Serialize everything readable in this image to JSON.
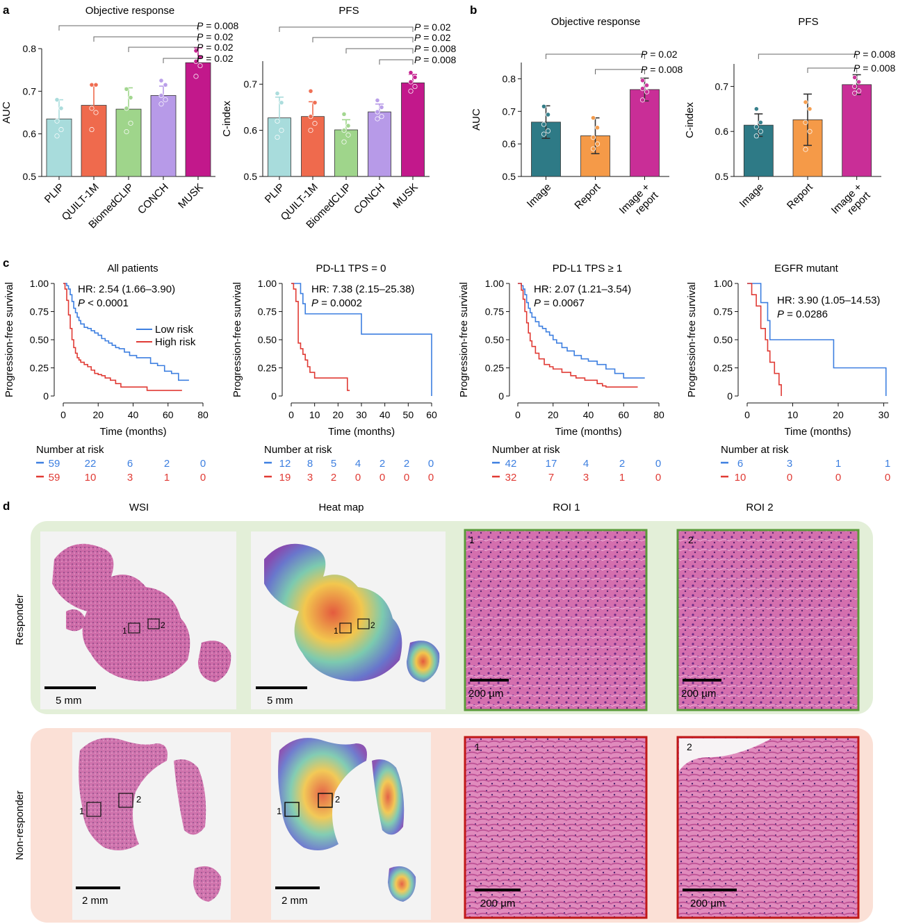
{
  "panels": {
    "a": "a",
    "b": "b",
    "c": "c",
    "d": "d"
  },
  "colors": {
    "PLIP": "#a8dcdc",
    "QUILT-1M": "#ef6a4d",
    "BiomedCLIP": "#9fd58b",
    "CONCH": "#b79ae8",
    "MUSK": "#c2188b",
    "Image": "#2e7a86",
    "Report": "#f59a48",
    "Image + report": "#c92e97",
    "low_risk": "#3d7fe0",
    "high_risk": "#e03a34",
    "responder_bg": "#e3efd8",
    "nonresponder_bg": "#fbe0d6",
    "responder_border": "#5a9a3a",
    "nonresponder_border": "#c01818"
  },
  "chart_data": [
    {
      "id": "a1",
      "type": "bar",
      "title": "Objective response",
      "xlabel": "",
      "ylabel": "AUC",
      "ylim": [
        0.5,
        0.8
      ],
      "yticks": [
        "0.5",
        "0.6",
        "0.7",
        "0.8"
      ],
      "categories": [
        "PLIP",
        "QUILT-1M",
        "BiomedCLIP",
        "CONCH",
        "MUSK"
      ],
      "values": [
        0.635,
        0.667,
        0.658,
        0.69,
        0.767
      ],
      "err": [
        0.045,
        0.048,
        0.05,
        0.022,
        0.035
      ],
      "points": [
        [
          0.68,
          0.66,
          0.63,
          0.61,
          0.595
        ],
        [
          0.715,
          0.715,
          0.66,
          0.65,
          0.61
        ],
        [
          0.705,
          0.685,
          0.66,
          0.625,
          0.605
        ],
        [
          0.725,
          0.715,
          0.69,
          0.68,
          0.67
        ],
        [
          0.795,
          0.78,
          0.77,
          0.76,
          0.735
        ]
      ],
      "comparisons": [
        "P = 0.008",
        "P = 0.02",
        "P = 0.02",
        "P = 0.02"
      ]
    },
    {
      "id": "a2",
      "type": "bar",
      "title": "PFS",
      "xlabel": "",
      "ylabel": "C-index",
      "ylim": [
        0.5,
        0.75
      ],
      "yticks": [
        "0.5",
        "0.6",
        "0.7"
      ],
      "categories": [
        "PLIP",
        "QUILT-1M",
        "BiomedCLIP",
        "CONCH",
        "MUSK"
      ],
      "values": [
        0.627,
        0.63,
        0.601,
        0.64,
        0.703
      ],
      "err": [
        0.045,
        0.032,
        0.022,
        0.017,
        0.018
      ],
      "points": [
        [
          0.68,
          0.66,
          0.62,
          0.6,
          0.585
        ],
        [
          0.685,
          0.66,
          0.63,
          0.615,
          0.6
        ],
        [
          0.635,
          0.61,
          0.6,
          0.59,
          0.575
        ],
        [
          0.665,
          0.65,
          0.64,
          0.63,
          0.625
        ],
        [
          0.725,
          0.715,
          0.705,
          0.695,
          0.685
        ]
      ],
      "comparisons": [
        "P = 0.02",
        "P = 0.02",
        "P = 0.008",
        "P = 0.008"
      ]
    },
    {
      "id": "b1",
      "type": "bar",
      "title": "Objective response",
      "xlabel": "",
      "ylabel": "AUC",
      "ylim": [
        0.5,
        0.85
      ],
      "yticks": [
        "0.5",
        "0.6",
        "0.7",
        "0.8"
      ],
      "categories": [
        "Image",
        "Report",
        "Image + report"
      ],
      "tick_lines": [
        [
          "Image"
        ],
        [
          "Report"
        ],
        [
          "Image +",
          "report"
        ]
      ],
      "values": [
        0.667,
        0.625,
        0.767
      ],
      "err": [
        0.05,
        0.055,
        0.035
      ],
      "points": [
        [
          0.715,
          0.69,
          0.66,
          0.64,
          0.63
        ],
        [
          0.68,
          0.65,
          0.62,
          0.6,
          0.585
        ],
        [
          0.795,
          0.78,
          0.77,
          0.76,
          0.735
        ]
      ],
      "comparisons": [
        "P = 0.02",
        "P = 0.008"
      ]
    },
    {
      "id": "b2",
      "type": "bar",
      "title": "PFS",
      "xlabel": "",
      "ylabel": "C-index",
      "ylim": [
        0.5,
        0.75
      ],
      "yticks": [
        "0.5",
        "0.6",
        "0.7"
      ],
      "categories": [
        "Image",
        "Report",
        "Image + report"
      ],
      "tick_lines": [
        [
          "Image"
        ],
        [
          "Report"
        ],
        [
          "Image +",
          "report"
        ]
      ],
      "values": [
        0.614,
        0.626,
        0.704
      ],
      "err": [
        0.025,
        0.057,
        0.022
      ],
      "points": [
        [
          0.65,
          0.62,
          0.61,
          0.6,
          0.59
        ],
        [
          0.665,
          0.65,
          0.62,
          0.6,
          0.56
        ],
        [
          0.72,
          0.71,
          0.7,
          0.69,
          0.685
        ]
      ],
      "comparisons": [
        "P = 0.008",
        "P = 0.008"
      ]
    },
    {
      "id": "c1",
      "type": "line",
      "title": "All patients",
      "xlabel": "Time (months)",
      "ylabel": "Progression-free survival",
      "xlim": [
        0,
        80
      ],
      "xticks": [
        "0",
        "20",
        "40",
        "60",
        "80"
      ],
      "ylim": [
        0,
        1
      ],
      "yticks": [
        "0",
        "0.25",
        "0.50",
        "0.75",
        "1.00"
      ],
      "hr": "HR: 2.54 (1.66–3.90)",
      "p_prefix": "P",
      "p_text": " < 0.0001",
      "legend": {
        "low": "Low risk",
        "high": "High risk"
      },
      "series": [
        {
          "name": "Low risk",
          "x": [
            0,
            2,
            3,
            4,
            5,
            6,
            7,
            8,
            9,
            10,
            12,
            14,
            16,
            18,
            20,
            22,
            24,
            26,
            28,
            30,
            32,
            35,
            38,
            42,
            46,
            50,
            54,
            58,
            62,
            66,
            72
          ],
          "y": [
            1.0,
            0.98,
            0.95,
            0.9,
            0.84,
            0.78,
            0.74,
            0.7,
            0.67,
            0.64,
            0.61,
            0.6,
            0.58,
            0.56,
            0.54,
            0.51,
            0.49,
            0.47,
            0.45,
            0.43,
            0.42,
            0.39,
            0.36,
            0.34,
            0.34,
            0.29,
            0.27,
            0.22,
            0.2,
            0.14,
            0.14
          ]
        },
        {
          "name": "High risk",
          "x": [
            0,
            1,
            2,
            3,
            4,
            5,
            6,
            7,
            8,
            9,
            10,
            12,
            14,
            16,
            18,
            20,
            22,
            24,
            27,
            30,
            33,
            40,
            48,
            55,
            60,
            68
          ],
          "y": [
            1.0,
            0.95,
            0.85,
            0.72,
            0.6,
            0.5,
            0.43,
            0.38,
            0.34,
            0.32,
            0.3,
            0.28,
            0.26,
            0.23,
            0.2,
            0.19,
            0.18,
            0.16,
            0.14,
            0.11,
            0.08,
            0.08,
            0.05,
            0.05,
            0.05,
            0.05
          ]
        }
      ],
      "risk_table": {
        "label": "Number at risk",
        "low": [
          "59",
          "22",
          "6",
          "2",
          "0"
        ],
        "high": [
          "59",
          "10",
          "3",
          "1",
          "0"
        ]
      }
    },
    {
      "id": "c2",
      "type": "line",
      "title": "PD-L1 TPS = 0",
      "xlabel": "Time (months)",
      "ylabel": "Progression-free survival",
      "xlim": [
        0,
        60
      ],
      "xticks": [
        "0",
        "10",
        "20",
        "30",
        "40",
        "50",
        "60"
      ],
      "ylim": [
        0,
        1
      ],
      "yticks": [
        "0",
        "0.25",
        "0.50",
        "0.75",
        "1.00"
      ],
      "hr": "HR: 7.38 (2.15–25.38)",
      "p_prefix": "P",
      "p_text": " = 0.0002",
      "series": [
        {
          "name": "Low risk",
          "x": [
            0,
            3,
            4,
            5,
            6,
            30,
            59,
            60
          ],
          "y": [
            1.0,
            1.0,
            0.91,
            0.82,
            0.73,
            0.55,
            0.55,
            0.0
          ]
        },
        {
          "name": "High risk",
          "x": [
            0,
            1,
            2,
            3,
            4,
            5,
            6,
            7,
            8,
            10,
            15,
            20,
            24,
            25
          ],
          "y": [
            1.0,
            0.95,
            0.84,
            0.47,
            0.42,
            0.37,
            0.32,
            0.26,
            0.21,
            0.16,
            0.16,
            0.16,
            0.05,
            0.05
          ]
        }
      ],
      "risk_table": {
        "label": "Number at risk",
        "low": [
          "12",
          "8",
          "5",
          "4",
          "2",
          "2",
          "0"
        ],
        "high": [
          "19",
          "3",
          "2",
          "0",
          "0",
          "0",
          "0"
        ]
      }
    },
    {
      "id": "c3",
      "type": "line",
      "title": "PD-L1 TPS ≥ 1",
      "xlabel": "Time (months)",
      "ylabel": "Progression-free survival",
      "xlim": [
        0,
        80
      ],
      "xticks": [
        "0",
        "20",
        "40",
        "60",
        "80"
      ],
      "ylim": [
        0,
        1
      ],
      "yticks": [
        "0",
        "0.25",
        "0.50",
        "0.75",
        "1.00"
      ],
      "hr": "HR: 2.07 (1.21–3.54)",
      "p_prefix": "P",
      "p_text": " = 0.0067",
      "series": [
        {
          "name": "Low risk",
          "x": [
            0,
            2,
            3,
            4,
            5,
            6,
            7,
            8,
            10,
            12,
            14,
            16,
            18,
            20,
            22,
            25,
            28,
            32,
            36,
            40,
            45,
            50,
            55,
            60,
            65,
            72
          ],
          "y": [
            1.0,
            0.98,
            0.95,
            0.9,
            0.83,
            0.78,
            0.74,
            0.7,
            0.66,
            0.62,
            0.6,
            0.57,
            0.54,
            0.5,
            0.47,
            0.43,
            0.4,
            0.36,
            0.33,
            0.31,
            0.28,
            0.24,
            0.2,
            0.16,
            0.16,
            0.16
          ]
        },
        {
          "name": "High risk",
          "x": [
            0,
            2,
            3,
            4,
            5,
            6,
            7,
            8,
            10,
            12,
            15,
            18,
            20,
            25,
            30,
            33,
            38,
            45,
            48,
            50,
            60,
            68
          ],
          "y": [
            1.0,
            0.94,
            0.86,
            0.75,
            0.65,
            0.56,
            0.49,
            0.44,
            0.38,
            0.33,
            0.28,
            0.26,
            0.24,
            0.21,
            0.18,
            0.16,
            0.14,
            0.11,
            0.09,
            0.08,
            0.08,
            0.08
          ]
        }
      ],
      "risk_table": {
        "label": "Number at risk",
        "low": [
          "42",
          "17",
          "4",
          "2",
          "0"
        ],
        "high": [
          "32",
          "7",
          "3",
          "1",
          "0"
        ]
      }
    },
    {
      "id": "c4",
      "type": "line",
      "title": "EGFR mutant",
      "xlabel": "Time (months)",
      "ylabel": "Progression-free survival",
      "xlim": [
        0,
        31
      ],
      "xticks": [
        "0",
        "10",
        "20",
        "30"
      ],
      "ylim": [
        0,
        1
      ],
      "yticks": [
        "0",
        "0.25",
        "0.50",
        "0.75",
        "1.00"
      ],
      "hr": "HR: 3.90 (1.05–14.53)",
      "p_prefix": "P",
      "p_text": " = 0.0286",
      "series": [
        {
          "name": "Low risk",
          "x": [
            0,
            3,
            4.5,
            5,
            19,
            30,
            30.5
          ],
          "y": [
            1.0,
            0.83,
            0.67,
            0.5,
            0.25,
            0.25,
            0.0
          ]
        },
        {
          "name": "High risk",
          "x": [
            0,
            1,
            2,
            3,
            4,
            4.5,
            5,
            6,
            7,
            7.5
          ],
          "y": [
            1.0,
            0.9,
            0.8,
            0.6,
            0.5,
            0.4,
            0.3,
            0.2,
            0.1,
            0.0
          ]
        }
      ],
      "risk_table": {
        "label": "Number at risk",
        "low": [
          "6",
          "3",
          "1",
          "1"
        ],
        "high": [
          "10",
          "0",
          "0",
          "0"
        ]
      }
    }
  ],
  "histology": {
    "columns": [
      "WSI",
      "Heat map",
      "ROI 1",
      "ROI 2"
    ],
    "rows": [
      {
        "label": "Responder",
        "scale_wsi": "5 mm",
        "scale_heat": "5 mm",
        "scale_roi": "200 µm",
        "roi1": "1",
        "roi2": "2"
      },
      {
        "label": "Non-responder",
        "scale_wsi": "2 mm",
        "scale_heat": "2 mm",
        "scale_roi": "200 µm",
        "roi1": "1",
        "roi2": "2"
      }
    ]
  }
}
